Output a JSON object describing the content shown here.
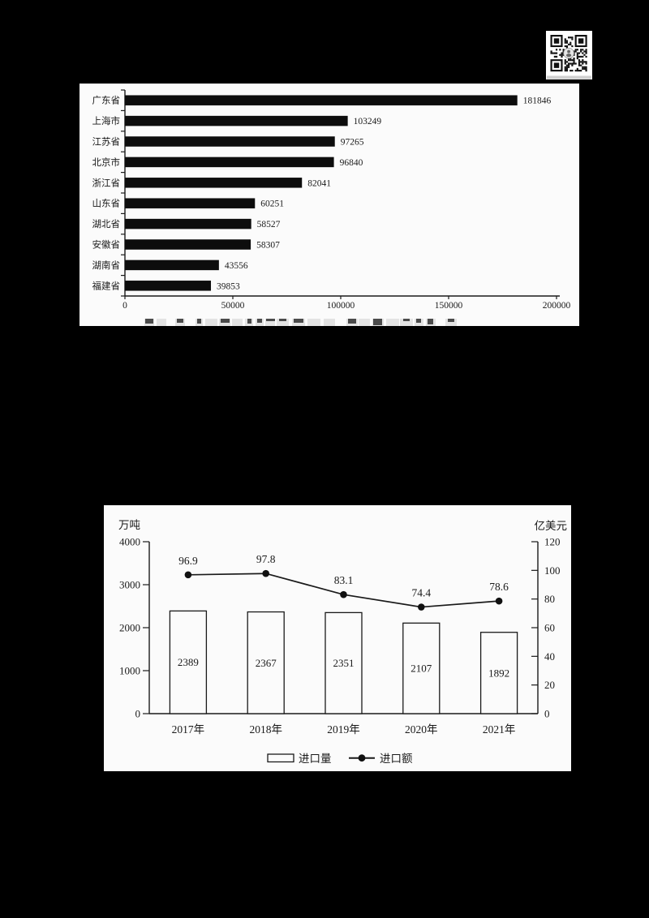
{
  "page": {
    "type": "scanned-document-page",
    "background_color": "#000000",
    "panel_color": "#fbfbfb",
    "ink_color": "#1a1a1a"
  },
  "icons": {
    "qr_code": "qr-code"
  },
  "chart_data": [
    {
      "id": "provinces_import_bar",
      "type": "bar",
      "orientation": "horizontal",
      "categories": [
        "广东省",
        "上海市",
        "江苏省",
        "北京市",
        "浙江省",
        "山东省",
        "湖北省",
        "安徽省",
        "湖南省",
        "福建省"
      ],
      "values": [
        181846,
        103249,
        97265,
        96840,
        82041,
        60251,
        58527,
        58307,
        43556,
        39853
      ],
      "xlim": [
        0,
        200000
      ],
      "x_ticks": [
        0,
        50000,
        100000,
        150000,
        200000
      ],
      "bar_color": "#0d0d0d",
      "grid": false,
      "legend_position": "none",
      "caption_note": "cropped-illegible"
    },
    {
      "id": "import_volume_value_combo",
      "type": "combo",
      "categories": [
        "2017年",
        "2018年",
        "2019年",
        "2020年",
        "2021年"
      ],
      "series": [
        {
          "name": "进口量",
          "chart": "bar",
          "axis": "left",
          "values": [
            2389,
            2367,
            2351,
            2107,
            1892
          ],
          "fill": "#fbfbfb",
          "stroke": "#1a1a1a"
        },
        {
          "name": "进口额",
          "chart": "line",
          "axis": "right",
          "values": [
            96.9,
            97.8,
            83.1,
            74.4,
            78.6
          ],
          "color": "#1a1a1a"
        }
      ],
      "left_axis": {
        "unit": "万吨",
        "ticks": [
          0,
          1000,
          2000,
          3000,
          4000
        ],
        "max": 4000
      },
      "right_axis": {
        "unit": "亿美元",
        "ticks": [
          0,
          20,
          40,
          60,
          80,
          100,
          120
        ],
        "max": 120
      },
      "legend": [
        {
          "swatch": "bar-outline",
          "label": "进口量"
        },
        {
          "swatch": "line-dot",
          "label": "进口额"
        }
      ],
      "legend_position": "bottom",
      "grid": false
    }
  ]
}
